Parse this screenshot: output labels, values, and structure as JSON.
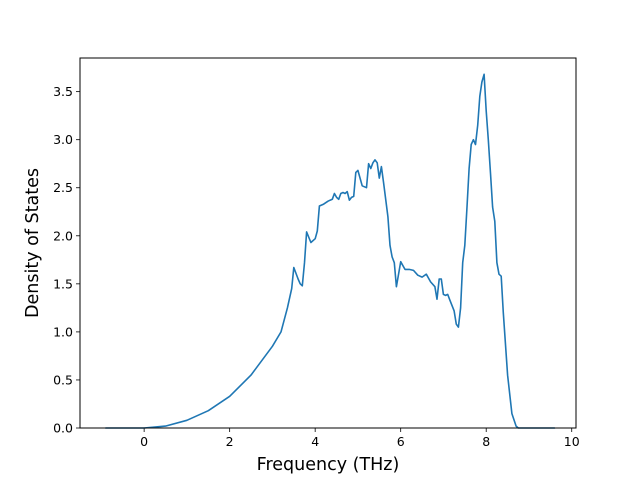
{
  "chart_data": {
    "type": "line",
    "title": "",
    "xlabel": "Frequency (THz)",
    "ylabel": "Density of States",
    "xlim": [
      -1.5,
      10.1
    ],
    "ylim": [
      0.0,
      3.85
    ],
    "xticks": [
      0,
      2,
      4,
      6,
      8,
      10
    ],
    "xtick_labels": [
      "0",
      "2",
      "4",
      "6",
      "8",
      "10"
    ],
    "yticks": [
      0.0,
      0.5,
      1.0,
      1.5,
      2.0,
      2.5,
      3.0,
      3.5
    ],
    "ytick_labels": [
      "0.0",
      "0.5",
      "1.0",
      "1.5",
      "2.0",
      "2.5",
      "3.0",
      "3.5"
    ],
    "grid": false,
    "line_color": "#1f77b4",
    "series": [
      {
        "name": "",
        "x": [
          -0.9,
          -0.5,
          0.0,
          0.5,
          1.0,
          1.5,
          2.0,
          2.5,
          3.0,
          3.2,
          3.35,
          3.45,
          3.5,
          3.6,
          3.65,
          3.7,
          3.75,
          3.8,
          3.9,
          4.0,
          4.05,
          4.1,
          4.2,
          4.3,
          4.35,
          4.4,
          4.45,
          4.5,
          4.55,
          4.6,
          4.65,
          4.7,
          4.75,
          4.8,
          4.85,
          4.9,
          4.95,
          5.0,
          5.1,
          5.2,
          5.25,
          5.3,
          5.35,
          5.4,
          5.45,
          5.5,
          5.55,
          5.6,
          5.7,
          5.75,
          5.8,
          5.85,
          5.9,
          6.0,
          6.1,
          6.2,
          6.3,
          6.4,
          6.5,
          6.6,
          6.7,
          6.8,
          6.85,
          6.9,
          6.95,
          7.0,
          7.05,
          7.1,
          7.15,
          7.25,
          7.3,
          7.35,
          7.4,
          7.45,
          7.5,
          7.55,
          7.6,
          7.65,
          7.7,
          7.75,
          7.8,
          7.85,
          7.9,
          7.95,
          8.0,
          8.05,
          8.1,
          8.15,
          8.2,
          8.25,
          8.3,
          8.35,
          8.4,
          8.5,
          8.6,
          8.7,
          8.75,
          8.8,
          9.6
        ],
        "y": [
          0.0,
          0.0,
          0.0,
          0.02,
          0.08,
          0.18,
          0.33,
          0.55,
          0.85,
          1.0,
          1.25,
          1.45,
          1.67,
          1.55,
          1.5,
          1.48,
          1.72,
          2.04,
          1.93,
          1.97,
          2.05,
          2.31,
          2.33,
          2.36,
          2.37,
          2.38,
          2.44,
          2.4,
          2.38,
          2.44,
          2.45,
          2.44,
          2.46,
          2.37,
          2.4,
          2.41,
          2.66,
          2.68,
          2.52,
          2.5,
          2.75,
          2.7,
          2.76,
          2.79,
          2.76,
          2.6,
          2.72,
          2.55,
          2.2,
          1.9,
          1.78,
          1.72,
          1.47,
          1.73,
          1.65,
          1.65,
          1.64,
          1.59,
          1.57,
          1.6,
          1.52,
          1.47,
          1.34,
          1.55,
          1.55,
          1.39,
          1.38,
          1.39,
          1.33,
          1.22,
          1.08,
          1.05,
          1.25,
          1.72,
          1.9,
          2.3,
          2.7,
          2.95,
          3.0,
          2.95,
          3.15,
          3.45,
          3.6,
          3.68,
          3.3,
          3.0,
          2.65,
          2.3,
          2.15,
          1.72,
          1.6,
          1.58,
          1.2,
          0.55,
          0.15,
          0.02,
          0.0,
          0.0,
          0.0
        ]
      }
    ]
  }
}
